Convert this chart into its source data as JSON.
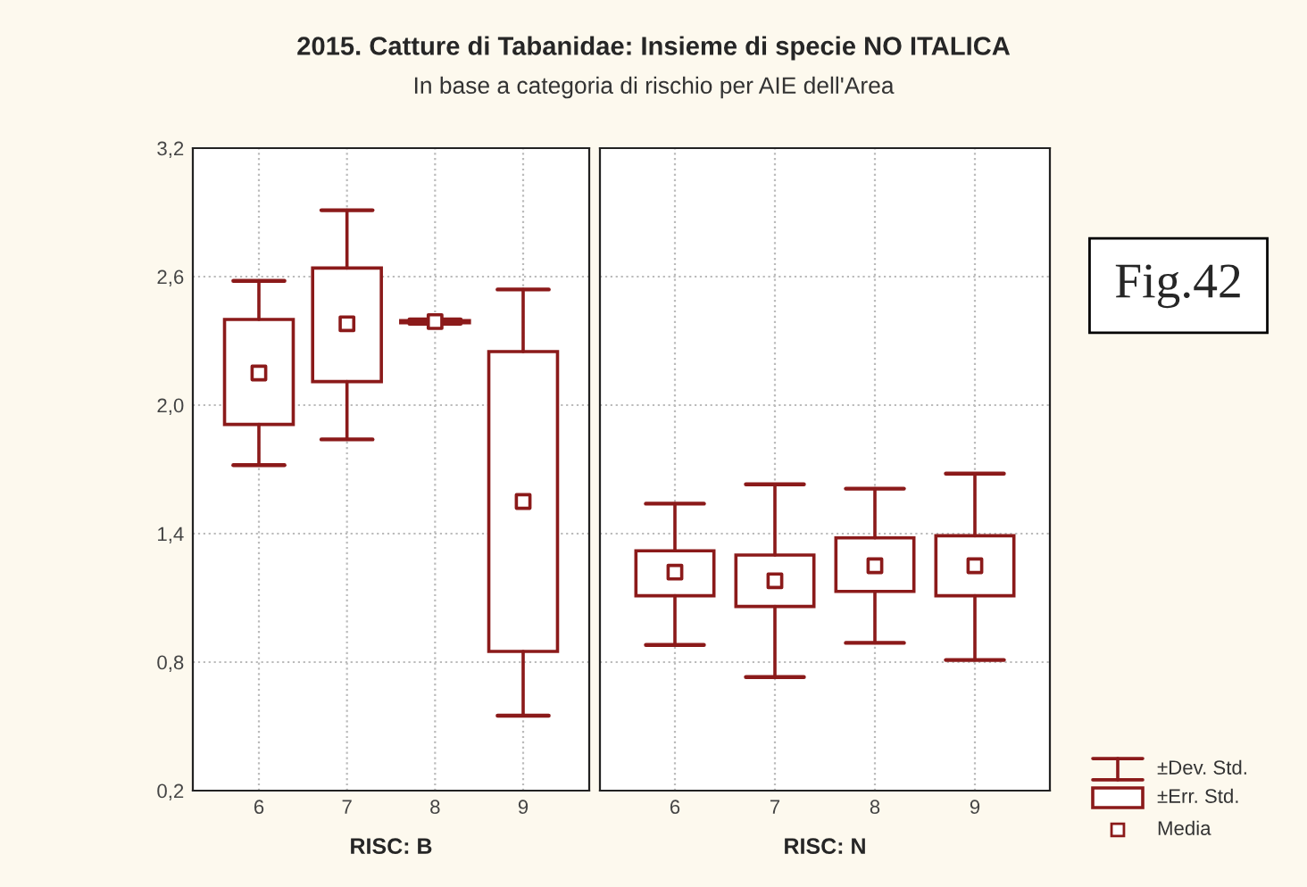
{
  "chart_data": [
    {
      "type": "box",
      "title": "2015. Catture di Tabanidae: Insieme di specie NO ITALICA",
      "subtitle": "In base a categoria di rischio per AIE dell'Area",
      "xlabel": "RISC: B",
      "categories": [
        "6",
        "7",
        "8",
        "9"
      ],
      "color": "#8b1a1a",
      "boxes": [
        {
          "low": 1.72,
          "q1": 1.91,
          "mean": 2.15,
          "q3": 2.4,
          "high": 2.58
        },
        {
          "low": 1.84,
          "q1": 2.11,
          "mean": 2.38,
          "q3": 2.64,
          "high": 2.91
        },
        {
          "low": 2.38,
          "q1": 2.385,
          "mean": 2.39,
          "q3": 2.395,
          "high": 2.4
        },
        {
          "low": 0.55,
          "q1": 0.85,
          "mean": 1.55,
          "q3": 2.25,
          "high": 2.54
        }
      ],
      "ylim": [
        0.2,
        3.2
      ],
      "yticks": [
        {
          "value": 0.2,
          "label": "0,2"
        },
        {
          "value": 0.8,
          "label": "0,8"
        },
        {
          "value": 1.4,
          "label": "1,4"
        },
        {
          "value": 2.0,
          "label": "2,0"
        },
        {
          "value": 2.6,
          "label": "2,6"
        },
        {
          "value": 3.2,
          "label": "3,2"
        }
      ],
      "grid": true
    },
    {
      "type": "box",
      "xlabel": "RISC: N",
      "categories": [
        "6",
        "7",
        "8",
        "9"
      ],
      "color": "#8b1a1a",
      "boxes": [
        {
          "low": 0.88,
          "q1": 1.11,
          "mean": 1.22,
          "q3": 1.32,
          "high": 1.54
        },
        {
          "low": 0.73,
          "q1": 1.06,
          "mean": 1.18,
          "q3": 1.3,
          "high": 1.63
        },
        {
          "low": 0.89,
          "q1": 1.13,
          "mean": 1.25,
          "q3": 1.38,
          "high": 1.61
        },
        {
          "low": 0.81,
          "q1": 1.11,
          "mean": 1.25,
          "q3": 1.39,
          "high": 1.68
        }
      ],
      "ylim": [
        0.2,
        3.2
      ],
      "yticks": [
        {
          "value": 0.2,
          "label": null
        },
        {
          "value": 0.8,
          "label": null
        },
        {
          "value": 1.4,
          "label": null
        },
        {
          "value": 2.0,
          "label": null
        },
        {
          "value": 2.6,
          "label": null
        },
        {
          "value": 3.2,
          "label": null
        }
      ],
      "grid": true,
      "tick_labels": "x",
      "annotations": [
        "±Dev. Std.",
        "±Err. Std.",
        "Media",
        "Fig.42"
      ]
    }
  ]
}
